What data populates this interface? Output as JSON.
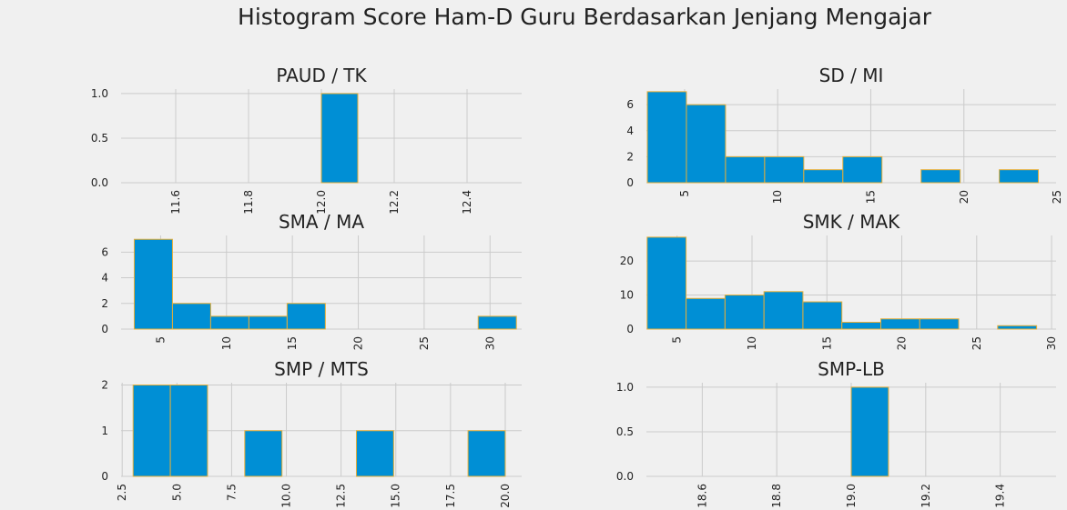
{
  "figure": {
    "title": "Histogram Score Ham-D Guru Berdasarkan Jenjang Mengajar"
  },
  "style": {
    "bar_color": "#008fd5",
    "edge_color": "#e5ae38",
    "background": "#f0f0f0",
    "grid_color": "#cbcbcb"
  },
  "chart_data": [
    {
      "type": "bar",
      "title": "PAUD / TK",
      "bins": [
        [
          12.0,
          12.1
        ]
      ],
      "counts": [
        1
      ],
      "xlim": [
        11.45,
        12.55
      ],
      "ylim": [
        0,
        1.05
      ],
      "xticks": [
        11.6,
        11.8,
        12.0,
        12.2,
        12.4
      ],
      "xtick_labels": [
        "11.6",
        "11.8",
        "12.0",
        "12.2",
        "12.4"
      ],
      "yticks": [
        0,
        0.5,
        1.0
      ],
      "ytick_labels": [
        "0.0",
        "0.5",
        "1.0"
      ],
      "grid": true
    },
    {
      "type": "bar",
      "title": "SD / MI",
      "bins": [
        [
          3,
          5.1
        ],
        [
          5.1,
          7.2
        ],
        [
          7.2,
          9.3
        ],
        [
          9.3,
          11.4
        ],
        [
          11.4,
          13.5
        ],
        [
          13.5,
          15.6
        ],
        [
          15.6,
          17.7
        ],
        [
          17.7,
          19.8
        ],
        [
          19.8,
          21.9
        ],
        [
          21.9,
          24
        ]
      ],
      "counts": [
        7,
        6,
        2,
        2,
        1,
        2,
        0,
        1,
        0,
        1
      ],
      "xlim": [
        2.95,
        24.95
      ],
      "ylim": [
        0,
        7.2
      ],
      "xticks": [
        5,
        10,
        15,
        20,
        25
      ],
      "xtick_labels": [
        "5",
        "10",
        "15",
        "20",
        "25"
      ],
      "yticks": [
        0,
        2,
        4,
        6
      ],
      "ytick_labels": [
        "0",
        "2",
        "4",
        "6"
      ],
      "grid": true
    },
    {
      "type": "bar",
      "title": "SMA / MA",
      "bins": [
        [
          3,
          5.9
        ],
        [
          5.9,
          8.8
        ],
        [
          8.8,
          11.7
        ],
        [
          11.7,
          14.6
        ],
        [
          14.6,
          17.5
        ],
        [
          17.5,
          20.4
        ],
        [
          20.4,
          23.3
        ],
        [
          23.3,
          26.2
        ],
        [
          26.2,
          29.1
        ],
        [
          29.1,
          32
        ]
      ],
      "counts": [
        7,
        2,
        1,
        1,
        2,
        0,
        0,
        0,
        0,
        1
      ],
      "xlim": [
        2.0,
        32.4
      ],
      "ylim": [
        0,
        7.3
      ],
      "xticks": [
        5,
        10,
        15,
        20,
        25,
        30
      ],
      "xtick_labels": [
        "5",
        "10",
        "15",
        "20",
        "25",
        "30"
      ],
      "yticks": [
        0,
        2,
        4,
        6
      ],
      "ytick_labels": [
        "0",
        "2",
        "4",
        "6"
      ],
      "grid": true
    },
    {
      "type": "bar",
      "title": "SMK / MAK",
      "bins": [
        [
          3,
          5.6
        ],
        [
          5.6,
          8.2
        ],
        [
          8.2,
          10.8
        ],
        [
          10.8,
          13.4
        ],
        [
          13.4,
          16
        ],
        [
          16,
          18.6
        ],
        [
          18.6,
          21.2
        ],
        [
          21.2,
          23.8
        ],
        [
          23.8,
          26.4
        ],
        [
          26.4,
          29
        ]
      ],
      "counts": [
        27,
        9,
        10,
        11,
        8,
        2,
        3,
        3,
        0,
        1
      ],
      "xlim": [
        2.95,
        30.3
      ],
      "ylim": [
        0,
        27.5
      ],
      "xticks": [
        5,
        10,
        15,
        20,
        25,
        30
      ],
      "xtick_labels": [
        "5",
        "10",
        "15",
        "20",
        "25",
        "30"
      ],
      "yticks": [
        0,
        10,
        20
      ],
      "ytick_labels": [
        "0",
        "10",
        "20"
      ],
      "grid": true
    },
    {
      "type": "bar",
      "title": "SMP / MTS",
      "bins": [
        [
          3,
          4.7
        ],
        [
          4.7,
          6.4
        ],
        [
          6.4,
          8.1
        ],
        [
          8.1,
          9.8
        ],
        [
          9.8,
          11.5
        ],
        [
          11.5,
          13.2
        ],
        [
          13.2,
          14.9
        ],
        [
          14.9,
          16.6
        ],
        [
          16.6,
          18.3
        ],
        [
          18.3,
          20
        ]
      ],
      "counts": [
        2,
        2,
        0,
        1,
        0,
        0,
        1,
        0,
        0,
        1
      ],
      "xlim": [
        2.45,
        20.75
      ],
      "ylim": [
        0,
        2.05
      ],
      "xticks": [
        2.5,
        5.0,
        7.5,
        10.0,
        12.5,
        15.0,
        17.5,
        20.0
      ],
      "xtick_labels": [
        "2.5",
        "5.0",
        "7.5",
        "10.0",
        "12.5",
        "15.0",
        "17.5",
        "20.0"
      ],
      "yticks": [
        0,
        1,
        2
      ],
      "ytick_labels": [
        "0",
        "1",
        "2"
      ],
      "grid": true
    },
    {
      "type": "bar",
      "title": "SMP-LB",
      "bins": [
        [
          19.0,
          19.1
        ]
      ],
      "counts": [
        1
      ],
      "xlim": [
        18.45,
        19.55
      ],
      "ylim": [
        0,
        1.05
      ],
      "xticks": [
        18.6,
        18.8,
        19.0,
        19.2,
        19.4
      ],
      "xtick_labels": [
        "18.6",
        "18.8",
        "19.0",
        "19.2",
        "19.4"
      ],
      "yticks": [
        0,
        0.5,
        1.0
      ],
      "ytick_labels": [
        "0.0",
        "0.5",
        "1.0"
      ],
      "grid": true
    }
  ]
}
